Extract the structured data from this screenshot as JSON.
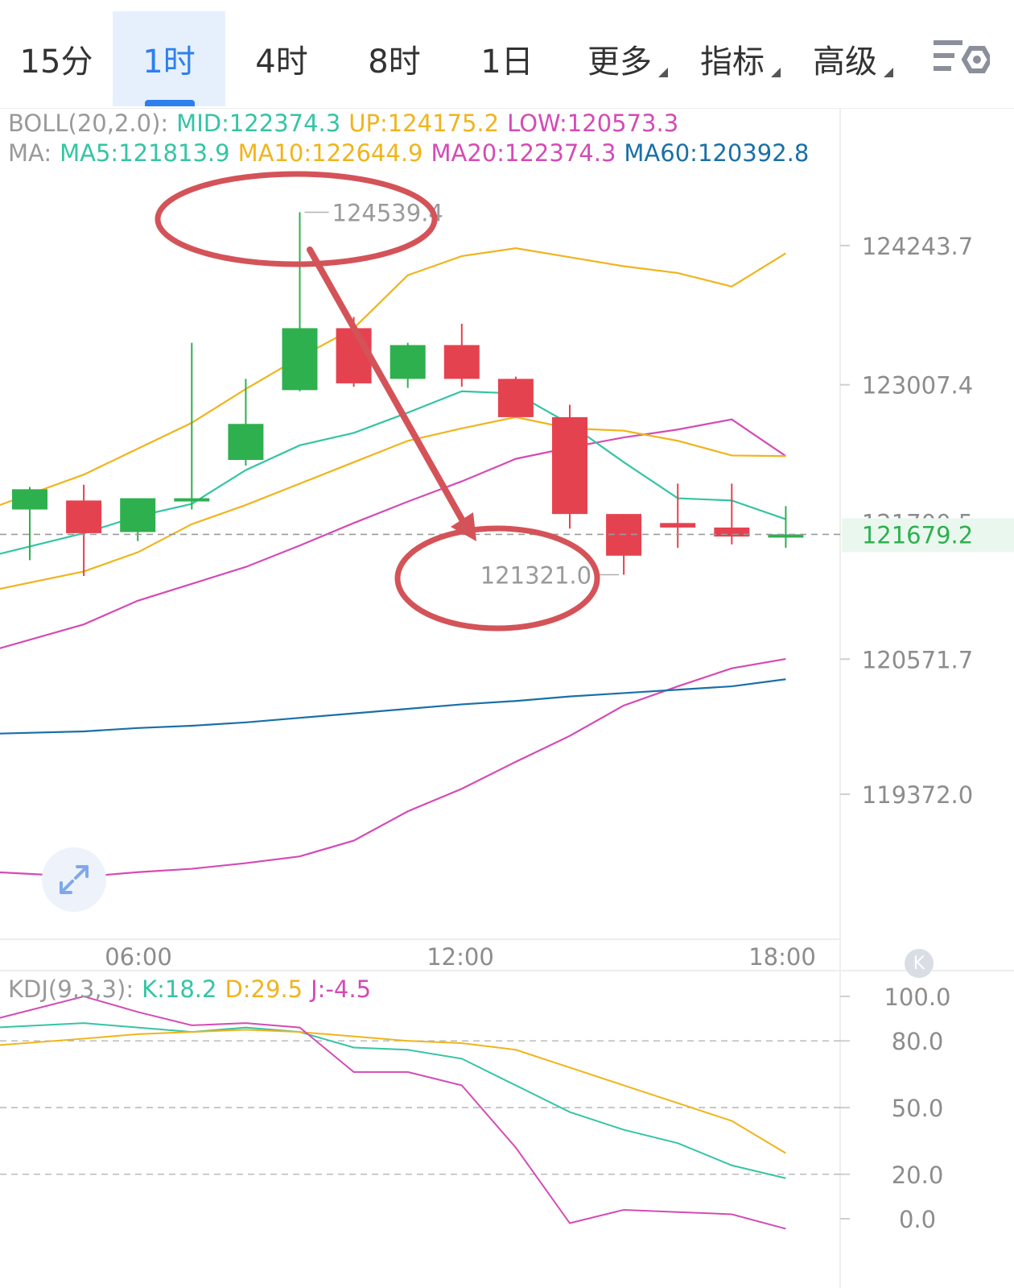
{
  "toolbar": {
    "tabs": [
      {
        "label": "15分",
        "active": false,
        "dropdown": false
      },
      {
        "label": "1时",
        "active": true,
        "dropdown": false
      },
      {
        "label": "4时",
        "active": false,
        "dropdown": false
      },
      {
        "label": "8时",
        "active": false,
        "dropdown": false
      },
      {
        "label": "1日",
        "active": false,
        "dropdown": false
      },
      {
        "label": "更多",
        "active": false,
        "dropdown": true
      },
      {
        "label": "指标",
        "active": false,
        "dropdown": true
      },
      {
        "label": "高级",
        "active": false,
        "dropdown": true
      }
    ],
    "settings_icon": "chart-settings-icon"
  },
  "legend": {
    "boll": {
      "name": "BOLL(20,2.0):",
      "mid": "MID:122374.3",
      "up": "UP:124175.2",
      "low": "LOW:120573.3"
    },
    "ma": {
      "name": "MA:",
      "ma5": "MA5:121813.9",
      "ma10": "MA10:122644.9",
      "ma20": "MA20:122374.3",
      "ma60": "MA60:120392.8"
    },
    "kdj": {
      "name": "KDJ(9,3,3):",
      "k": "K:18.2",
      "d": "D:29.5",
      "j": "J:-4.5"
    }
  },
  "colors": {
    "up_candle": "#2eb04f",
    "down_candle": "#e5424f",
    "ma5": "#35c4a5",
    "ma10": "#f0b41c",
    "ma20": "#d44bb5",
    "ma60": "#1a6fa8",
    "boll_band": "#f0b41c",
    "boll_mid": "#d44bb5",
    "annotation": "#d45358",
    "price_tag": "#2eb04f",
    "accent": "#2d7ff0"
  },
  "chart_data": [
    {
      "type": "candlestick",
      "y_ticks": [
        "124243.7",
        "123007.4",
        "120571.7",
        "119372.0"
      ],
      "x_ticks": [
        "06:00",
        "12:00",
        "18:00"
      ],
      "ylim": [
        118500,
        125100
      ],
      "candles": [
        {
          "open": 121900,
          "high": 122100,
          "low": 121450,
          "close": 122080,
          "dir": "up"
        },
        {
          "open": 121980,
          "high": 122120,
          "low": 121310,
          "close": 121690,
          "dir": "down"
        },
        {
          "open": 121700,
          "high": 122000,
          "low": 121620,
          "close": 122000,
          "dir": "up"
        },
        {
          "open": 122000,
          "high": 123380,
          "low": 121900,
          "close": 122000,
          "dir": "up"
        },
        {
          "open": 122340,
          "high": 123060,
          "low": 122290,
          "close": 122660,
          "dir": "up"
        },
        {
          "open": 122960,
          "high": 124539.4,
          "low": 122950,
          "close": 123510,
          "dir": "up"
        },
        {
          "open": 123510,
          "high": 123610,
          "low": 122990,
          "close": 123020,
          "dir": "down"
        },
        {
          "open": 123060,
          "high": 123380,
          "low": 122980,
          "close": 123360,
          "dir": "up"
        },
        {
          "open": 123360,
          "high": 123550,
          "low": 122990,
          "close": 123060,
          "dir": "down"
        },
        {
          "open": 123060,
          "high": 123080,
          "low": 122720,
          "close": 122720,
          "dir": "down"
        },
        {
          "open": 122720,
          "high": 122830,
          "low": 121730,
          "close": 121860,
          "dir": "down"
        },
        {
          "open": 121860,
          "high": 121860,
          "low": 121321.0,
          "close": 121490,
          "dir": "down"
        },
        {
          "open": 121780,
          "high": 122130,
          "low": 121560,
          "close": 121740,
          "dir": "down"
        },
        {
          "open": 121740,
          "high": 122130,
          "low": 121590,
          "close": 121660,
          "dir": "down"
        },
        {
          "open": 121679.2,
          "high": 121930,
          "low": 121560,
          "close": 121679.2,
          "dir": "up"
        }
      ],
      "ma5": [
        121500,
        121690,
        121840,
        121950,
        122250,
        122470,
        122580,
        122760,
        122950,
        122930,
        122660,
        122320,
        122000,
        121980,
        121813.9
      ],
      "boll_up": [
        121930,
        122210,
        122440,
        122670,
        122970,
        123250,
        123510,
        123980,
        124150,
        124220,
        124140,
        124060,
        124000,
        123880,
        124175.2
      ],
      "boll_mid": [
        121190,
        121350,
        121520,
        121770,
        121940,
        122130,
        122320,
        122510,
        122620,
        122720,
        122620,
        122600,
        122510,
        122380,
        122374.3
      ],
      "ma20": [
        120660,
        120880,
        121090,
        121240,
        121390,
        121580,
        121780,
        121970,
        122150,
        122350,
        122450,
        122540,
        122610,
        122700,
        122374.3
      ],
      "ma60": [
        119910,
        119930,
        119960,
        119980,
        120010,
        120050,
        120090,
        120130,
        120170,
        120200,
        120240,
        120270,
        120300,
        120330,
        120392.8
      ],
      "boll_low": [
        118680,
        118640,
        118680,
        118710,
        118760,
        118820,
        118960,
        119220,
        119420,
        119660,
        119890,
        120160,
        120330,
        120490,
        120573.3
      ],
      "current_price": "121679.2",
      "hidden_label": "121700.5",
      "annotations": {
        "high_label": "124539.4",
        "low_label": "121321.0"
      }
    },
    {
      "type": "line",
      "title": "KDJ(9,3,3)",
      "y_ticks": [
        "100.0",
        "80.0",
        "50.0",
        "20.0",
        "0.0"
      ],
      "ylim": [
        0,
        100
      ],
      "series": [
        {
          "name": "K",
          "values": [
            86,
            88,
            86,
            84,
            86,
            84,
            77,
            76,
            72,
            60,
            48,
            40,
            34,
            24,
            18.2
          ]
        },
        {
          "name": "D",
          "values": [
            78,
            81,
            83,
            84,
            85,
            84,
            82,
            80,
            79,
            76,
            68,
            60,
            52,
            44,
            29.5
          ]
        },
        {
          "name": "J",
          "values": [
            90,
            100,
            93,
            87,
            88,
            86,
            66,
            66,
            60,
            32,
            -2,
            4,
            3,
            2,
            -4.5
          ]
        }
      ]
    }
  ]
}
